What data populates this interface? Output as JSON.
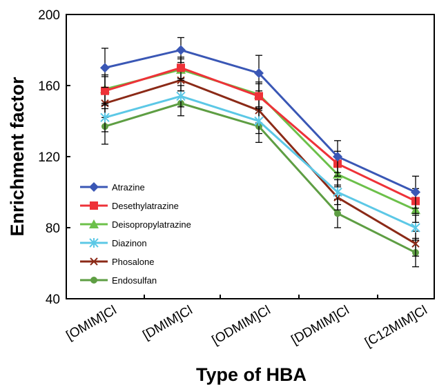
{
  "chart_data": {
    "type": "line",
    "title": "",
    "xlabel": "Type of HBA",
    "ylabel": "Enrichment factor",
    "categories": [
      "[OMIM]Cl",
      "[DMIM]Cl",
      "[ODMIM]Cl",
      "[DDMIM]Cl",
      "[C12MIM]Cl"
    ],
    "ylim": [
      40,
      200
    ],
    "yticks": [
      "40",
      "80",
      "120",
      "160",
      "200"
    ],
    "grid": false,
    "legend_position": "bottom-left inside",
    "series": [
      {
        "name": "Atrazine",
        "values": [
          170,
          180,
          167,
          120,
          100
        ],
        "error": [
          11,
          7,
          10,
          9,
          9
        ],
        "color": "#3a57b5",
        "marker": "diamond"
      },
      {
        "name": "Desethylatrazine",
        "values": [
          157,
          170,
          154,
          116,
          95
        ],
        "error": [
          8,
          6,
          7,
          7,
          7
        ],
        "color": "#ee3238",
        "marker": "square"
      },
      {
        "name": "Deisopropylatrazine",
        "values": [
          158,
          169,
          155,
          110,
          90
        ],
        "error": [
          8,
          6,
          7,
          7,
          7
        ],
        "color": "#6cc04a",
        "marker": "triangle"
      },
      {
        "name": "Diazinon",
        "values": [
          142,
          154,
          140,
          100,
          80
        ],
        "error": [
          8,
          6,
          7,
          7,
          7
        ],
        "color": "#5cc8e6",
        "marker": "asterisk"
      },
      {
        "name": "Phosalone",
        "values": [
          150,
          163,
          146,
          97,
          71
        ],
        "error": [
          8,
          6,
          7,
          7,
          7
        ],
        "color": "#8b2a17",
        "marker": "x"
      },
      {
        "name": "Endosulfan",
        "values": [
          137,
          150,
          137,
          88,
          66
        ],
        "error": [
          10,
          7,
          9,
          8,
          8
        ],
        "color": "#5e9e43",
        "marker": "circle"
      }
    ]
  }
}
